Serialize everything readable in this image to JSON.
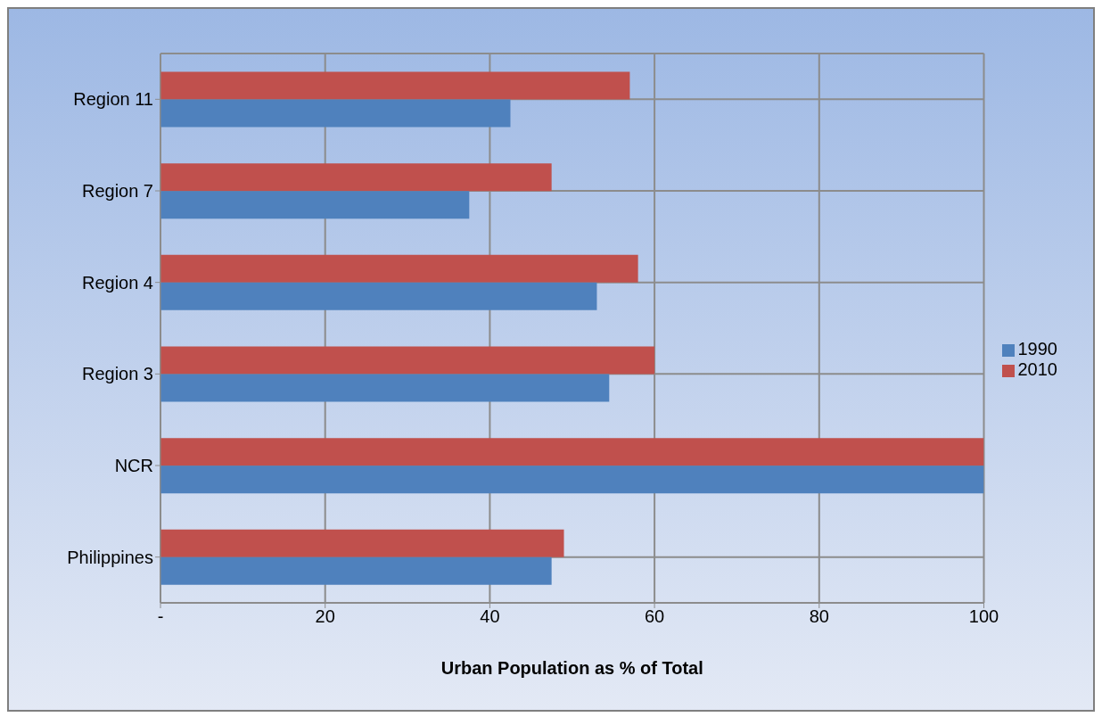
{
  "chart_data": {
    "type": "bar",
    "orientation": "horizontal",
    "xlabel": "Urban Population as % of Total",
    "categories": [
      "Region 11",
      "Region 7",
      "Region 4",
      "Region 3",
      "NCR",
      "Philippines"
    ],
    "series": [
      {
        "name": "2010",
        "color": "#c0504d",
        "values": [
          57,
          47.5,
          58,
          60,
          100,
          49
        ]
      },
      {
        "name": "1990",
        "color": "#4f81bd",
        "values": [
          42.5,
          37.5,
          53,
          54.5,
          100,
          47.5
        ]
      }
    ],
    "xlim": [
      0,
      100
    ],
    "xticks": [
      {
        "value": 0,
        "label": "-"
      },
      20,
      40,
      60,
      80,
      100
    ],
    "grid": true,
    "legend": "right"
  }
}
